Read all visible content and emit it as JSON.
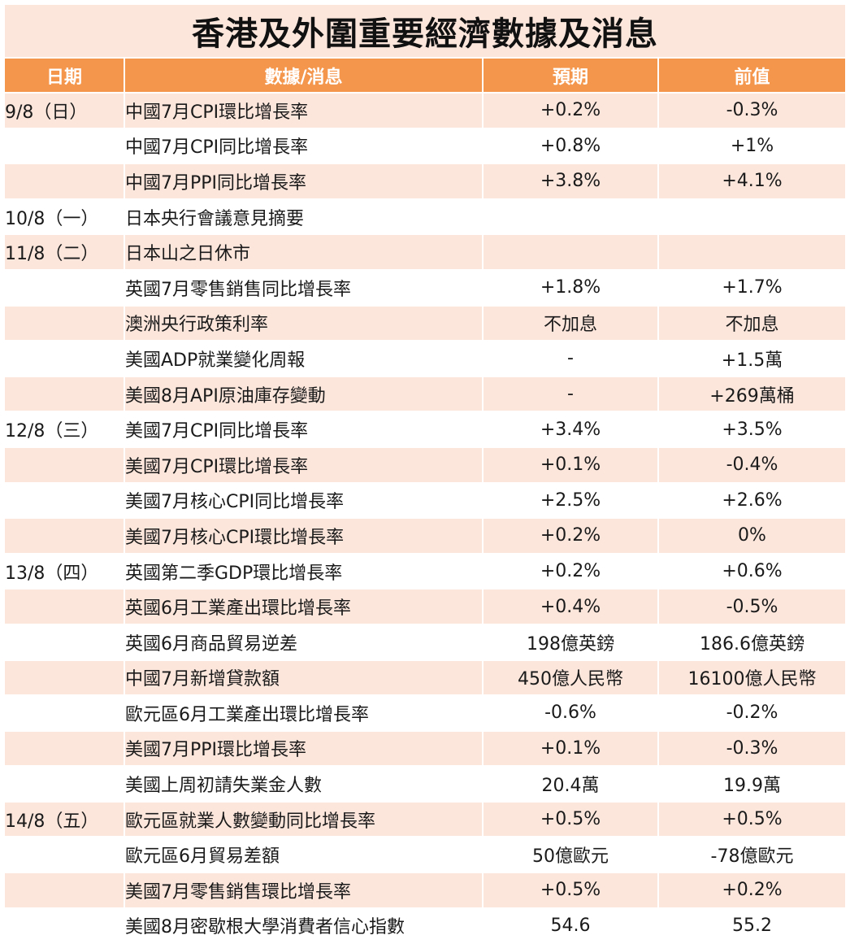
{
  "title": "香港及外圍重要經濟數據及消息",
  "headers": {
    "date": "日期",
    "item": "數據/消息",
    "expected": "預期",
    "previous": "前值"
  },
  "colors": {
    "header_bg": "#f4964c",
    "row_shade": "#fce6dc",
    "row_plain": "#ffffff"
  },
  "rows": [
    {
      "date": "9/8（日）",
      "item": "中國7月CPI環比增長率",
      "expected": "+0.2%",
      "previous": "-0.3%"
    },
    {
      "date": "",
      "item": "中國7月CPI同比增長率",
      "expected": "+0.8%",
      "previous": "+1%"
    },
    {
      "date": "",
      "item": "中國7月PPI同比增長率",
      "expected": "+3.8%",
      "previous": "+4.1%"
    },
    {
      "date": "10/8（一）",
      "item": "日本央行會議意見摘要",
      "expected": "",
      "previous": ""
    },
    {
      "date": "11/8（二）",
      "item": "日本山之日休市",
      "expected": "",
      "previous": ""
    },
    {
      "date": "",
      "item": "英國7月零售銷售同比增長率",
      "expected": "+1.8%",
      "previous": "+1.7%"
    },
    {
      "date": "",
      "item": "澳洲央行政策利率",
      "expected": "不加息",
      "previous": "不加息"
    },
    {
      "date": "",
      "item": "美國ADP就業變化周報",
      "expected": "-",
      "previous": "+1.5萬"
    },
    {
      "date": "",
      "item": "美國8月API原油庫存變動",
      "expected": "-",
      "previous": "+269萬桶"
    },
    {
      "date": "12/8（三）",
      "item": "美國7月CPI同比增長率",
      "expected": "+3.4%",
      "previous": "+3.5%"
    },
    {
      "date": "",
      "item": "美國7月CPI環比增長率",
      "expected": "+0.1%",
      "previous": "-0.4%"
    },
    {
      "date": "",
      "item": "美國7月核心CPI同比增長率",
      "expected": "+2.5%",
      "previous": "+2.6%"
    },
    {
      "date": "",
      "item": "美國7月核心CPI環比增長率",
      "expected": "+0.2%",
      "previous": "0%"
    },
    {
      "date": "13/8（四）",
      "item": "英國第二季GDP環比增長率",
      "expected": "+0.2%",
      "previous": "+0.6%"
    },
    {
      "date": "",
      "item": "英國6月工業產出環比增長率",
      "expected": "+0.4%",
      "previous": "-0.5%"
    },
    {
      "date": "",
      "item": "英國6月商品貿易逆差",
      "expected": "198億英鎊",
      "previous": "186.6億英鎊"
    },
    {
      "date": "",
      "item": "中國7月新增貸款額",
      "expected": "450億人民幣",
      "previous": "16100億人民幣"
    },
    {
      "date": "",
      "item": "歐元區6月工業產出環比增長率",
      "expected": "-0.6%",
      "previous": "-0.2%"
    },
    {
      "date": "",
      "item": "美國7月PPI環比增長率",
      "expected": "+0.1%",
      "previous": "-0.3%"
    },
    {
      "date": "",
      "item": "美國上周初請失業金人數",
      "expected": "20.4萬",
      "previous": "19.9萬"
    },
    {
      "date": "14/8（五）",
      "item": "歐元區就業人數變動同比增長率",
      "expected": "+0.5%",
      "previous": "+0.5%"
    },
    {
      "date": "",
      "item": "歐元區6月貿易差額",
      "expected": "50億歐元",
      "previous": "-78億歐元"
    },
    {
      "date": "",
      "item": "美國7月零售銷售環比增長率",
      "expected": "+0.5%",
      "previous": "+0.2%"
    },
    {
      "date": "",
      "item": "美國8月密歇根大學消費者信心指數",
      "expected": "54.6",
      "previous": "55.2"
    }
  ]
}
